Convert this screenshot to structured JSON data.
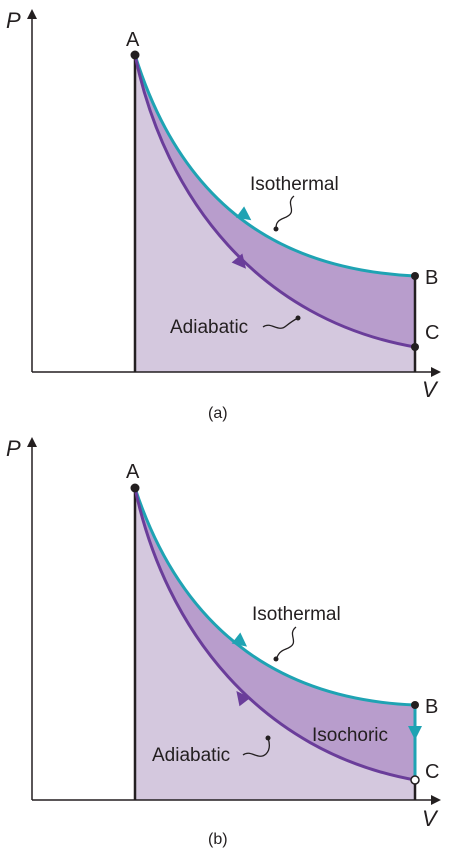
{
  "panels": [
    {
      "caption": "(a)",
      "y_axis_label": "P",
      "x_axis_label": "V",
      "point_labels": {
        "a": "A",
        "b": "B",
        "c": "C"
      },
      "curve_labels": {
        "isothermal": "Isothermal",
        "adiabatic": "Adiabatic"
      },
      "adiabatic_direction": "down"
    },
    {
      "caption": "(b)",
      "y_axis_label": "P",
      "x_axis_label": "V",
      "point_labels": {
        "a": "A",
        "b": "B",
        "c": "C"
      },
      "curve_labels": {
        "isothermal": "Isothermal",
        "adiabatic": "Adiabatic",
        "isochoric": "Isochoric"
      },
      "adiabatic_direction": "up"
    }
  ],
  "colors": {
    "isothermal": "#1fa3b3",
    "adiabatic": "#6a3d9a",
    "fill_light": "#d4c8de",
    "fill_dark": "#b89dcc",
    "axis": "#231f20"
  }
}
